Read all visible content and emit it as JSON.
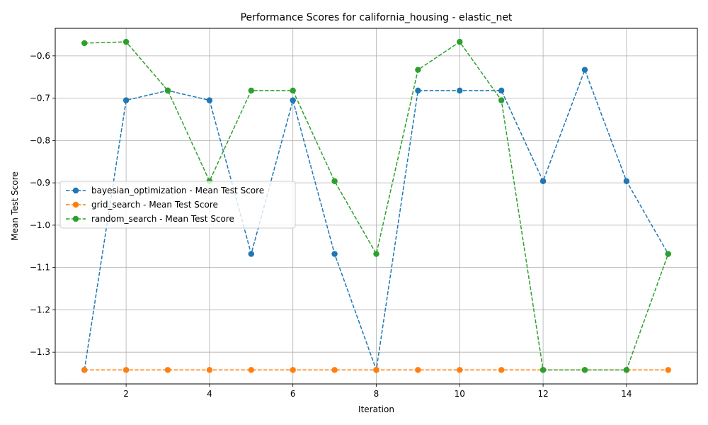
{
  "chart_data": {
    "type": "line",
    "title": "Performance Scores for california_housing - elastic_net",
    "xlabel": "Iteration",
    "ylabel": "Mean Test Score",
    "xlim": [
      0.3,
      15.7
    ],
    "ylim": [
      -1.375,
      -0.535
    ],
    "xticks": [
      2,
      4,
      6,
      8,
      10,
      12,
      14
    ],
    "yticks": [
      -1.3,
      -1.2,
      -1.1,
      -1.0,
      -0.9,
      -0.8,
      -0.7,
      -0.6
    ],
    "ytick_labels": [
      "−1.3",
      "−1.2",
      "−1.1",
      "−1.0",
      "−0.9",
      "−0.8",
      "−0.7",
      "−0.6"
    ],
    "grid": true,
    "legend_position": "center-left",
    "x": [
      1,
      2,
      3,
      4,
      5,
      6,
      7,
      8,
      9,
      10,
      11,
      12,
      13,
      14,
      15
    ],
    "series": [
      {
        "name": "bayesian_optimization - Mean Test Score",
        "color": "#1f77b4",
        "values": [
          -1.342,
          -0.705,
          -0.682,
          -0.705,
          -1.068,
          -0.705,
          -1.068,
          -1.342,
          -0.682,
          -0.682,
          -0.682,
          -0.896,
          -0.633,
          -0.896,
          -1.068
        ]
      },
      {
        "name": "grid_search - Mean Test Score",
        "color": "#ff7f0e",
        "values": [
          -1.342,
          -1.342,
          -1.342,
          -1.342,
          -1.342,
          -1.342,
          -1.342,
          -1.342,
          -1.342,
          -1.342,
          -1.342,
          -1.342,
          -1.342,
          -1.342,
          -1.342
        ]
      },
      {
        "name": "random_search - Mean Test Score",
        "color": "#2ca02c",
        "values": [
          -0.57,
          -0.567,
          -0.682,
          -0.896,
          -0.682,
          -0.682,
          -0.896,
          -1.068,
          -0.633,
          -0.567,
          -0.705,
          -1.342,
          -1.342,
          -1.342,
          -1.068
        ]
      }
    ]
  }
}
